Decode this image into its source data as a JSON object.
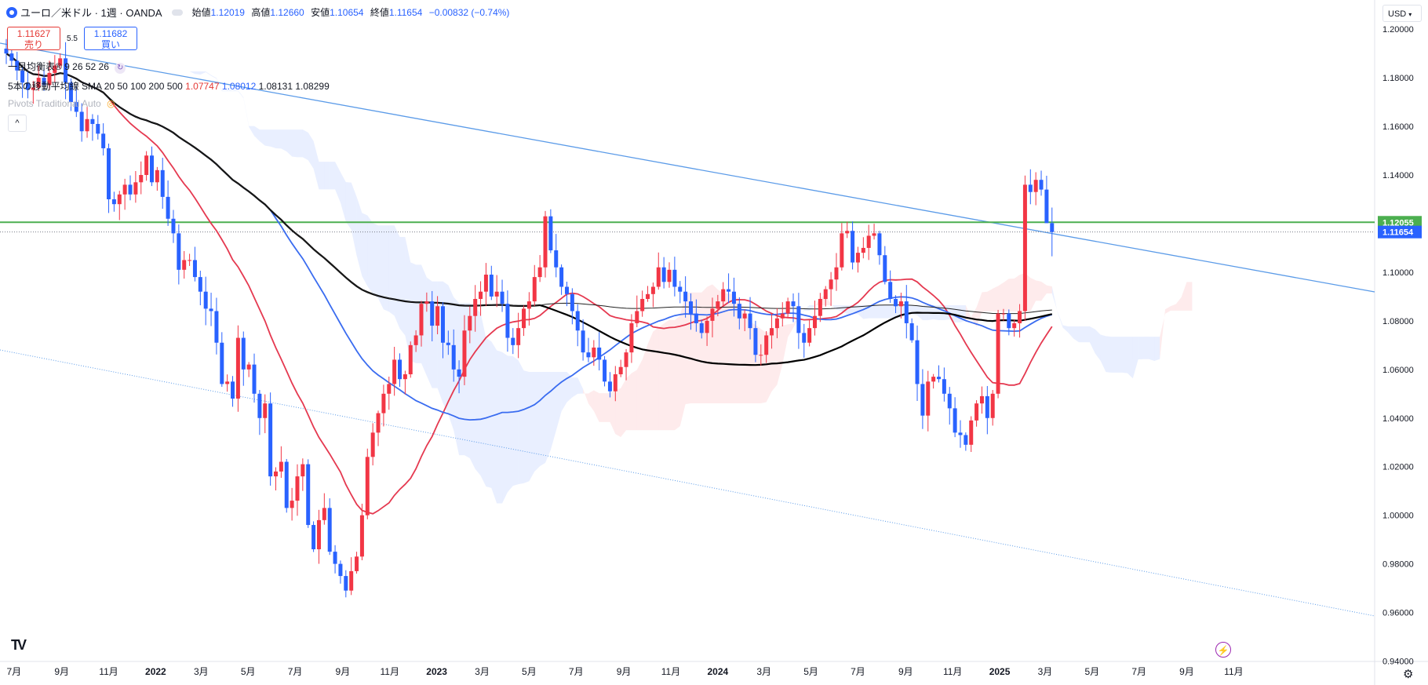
{
  "header": {
    "symbol": "ユーロ／米ドル · 1週 · OANDA",
    "ohlc": [
      {
        "label": "始値",
        "value": "1.12019"
      },
      {
        "label": "高値",
        "value": "1.12660"
      },
      {
        "label": "安値",
        "value": "1.10654"
      },
      {
        "label": "終値",
        "value": "1.11654"
      }
    ],
    "change": "−0.00832 (−0.74%)"
  },
  "trade": {
    "sell_price": "1.11627",
    "sell_label": "売り",
    "spread": "5.5",
    "buy_price": "1.11682",
    "buy_label": "買い"
  },
  "indicators": {
    "ichimoku": "一目均衡表® 9 26 52 26",
    "sma_label": "5本の移動平均線",
    "sma_params": "SMA 20 50 100 200 500",
    "sma_values": [
      "1.07747",
      "1.08012",
      "1.08131",
      "1.08299"
    ],
    "pivots": "Pivots Traditional Auto",
    "collapse": "^"
  },
  "currency_button": "USD",
  "price_tags": {
    "level": "1.12055",
    "last": "1.11654"
  },
  "icons": [
    "symbol-icon",
    "eye-toggle-icon",
    "sync-icon",
    "tradingview-logo-icon",
    "lightning-icon",
    "settings-gear-icon"
  ],
  "colors": {
    "bull": "#f23645",
    "bear": "#2962ff",
    "sma20": "#e53950",
    "sma50": "#3a6cf0",
    "sma100": "#000000",
    "sma200": "#222222",
    "support": "#4caf50",
    "trendline": "#5b9be8"
  },
  "chart_data": {
    "type": "candlestick",
    "timeframe": "1W",
    "y_ticks": [
      "1.20000",
      "1.18000",
      "1.16000",
      "1.14000",
      "1.12000",
      "1.10000",
      "1.08000",
      "1.06000",
      "1.04000",
      "1.02000",
      "1.00000",
      "0.98000",
      "0.96000",
      "0.94000"
    ],
    "x_labels": [
      {
        "label": "7月",
        "x": "2021-07"
      },
      {
        "label": "9月",
        "x": "2021-09"
      },
      {
        "label": "11月",
        "x": "2021-11"
      },
      {
        "label": "2022",
        "x": "2022-01"
      },
      {
        "label": "3月",
        "x": "2022-03"
      },
      {
        "label": "5月",
        "x": "2022-05"
      },
      {
        "label": "7月",
        "x": "2022-07"
      },
      {
        "label": "9月",
        "x": "2022-09"
      },
      {
        "label": "11月",
        "x": "2022-11"
      },
      {
        "label": "2023",
        "x": "2023-01"
      },
      {
        "label": "3月",
        "x": "2023-03"
      },
      {
        "label": "5月",
        "x": "2023-05"
      },
      {
        "label": "7月",
        "x": "2023-07"
      },
      {
        "label": "9月",
        "x": "2023-09"
      },
      {
        "label": "11月",
        "x": "2023-11"
      },
      {
        "label": "2024",
        "x": "2024-01"
      },
      {
        "label": "3月",
        "x": "2024-03"
      },
      {
        "label": "5月",
        "x": "2024-05"
      },
      {
        "label": "7月",
        "x": "2024-07"
      },
      {
        "label": "9月",
        "x": "2024-09"
      },
      {
        "label": "11月",
        "x": "2024-11"
      },
      {
        "label": "2025",
        "x": "2025-01"
      },
      {
        "label": "3月",
        "x": "2025-03"
      },
      {
        "label": "5月",
        "x": "2025-05"
      },
      {
        "label": "7月",
        "x": "2025-07"
      },
      {
        "label": "9月",
        "x": "2025-09"
      },
      {
        "label": "11月",
        "x": "2025-11"
      }
    ],
    "ylim": [
      0.935,
      1.212
    ],
    "closes": [
      1.19,
      1.187,
      1.183,
      1.178,
      1.175,
      1.176,
      1.18,
      1.177,
      1.182,
      1.185,
      1.188,
      1.178,
      1.17,
      1.166,
      1.158,
      1.163,
      1.161,
      1.157,
      1.151,
      1.13,
      1.128,
      1.132,
      1.136,
      1.132,
      1.137,
      1.14,
      1.148,
      1.137,
      1.142,
      1.131,
      1.122,
      1.116,
      1.101,
      1.105,
      1.105,
      1.098,
      1.092,
      1.085,
      1.084,
      1.071,
      1.054,
      1.055,
      1.048,
      1.073,
      1.06,
      1.062,
      1.05,
      1.04,
      1.046,
      1.016,
      1.018,
      1.022,
      1.003,
      1.006,
      1.016,
      1.021,
      0.996,
      0.986,
      0.998,
      1.003,
      0.985,
      0.98,
      0.975,
      0.969,
      0.977,
      0.983,
      1.0,
      1.024,
      1.034,
      1.042,
      1.05,
      1.054,
      1.064,
      1.056,
      1.058,
      1.07,
      1.074,
      1.087,
      1.088,
      1.078,
      1.086,
      1.071,
      1.07,
      1.06,
      1.057,
      1.076,
      1.082,
      1.089,
      1.092,
      1.099,
      1.09,
      1.092,
      1.087,
      1.073,
      1.07,
      1.077,
      1.085,
      1.088,
      1.098,
      1.102,
      1.123,
      1.109,
      1.102,
      1.094,
      1.091,
      1.084,
      1.076,
      1.067,
      1.065,
      1.069,
      1.064,
      1.055,
      1.051,
      1.058,
      1.061,
      1.067,
      1.079,
      1.084,
      1.089,
      1.091,
      1.094,
      1.102,
      1.096,
      1.101,
      1.094,
      1.092,
      1.088,
      1.083,
      1.079,
      1.075,
      1.08,
      1.085,
      1.088,
      1.093,
      1.092,
      1.087,
      1.081,
      1.083,
      1.077,
      1.066,
      1.066,
      1.074,
      1.077,
      1.081,
      1.083,
      1.088,
      1.086,
      1.075,
      1.071,
      1.077,
      1.082,
      1.089,
      1.093,
      1.097,
      1.102,
      1.116,
      1.117,
      1.104,
      1.108,
      1.11,
      1.115,
      1.116,
      1.107,
      1.096,
      1.089,
      1.086,
      1.088,
      1.079,
      1.072,
      1.054,
      1.041,
      1.055,
      1.057,
      1.056,
      1.05,
      1.044,
      1.034,
      1.033,
      1.029,
      1.039,
      1.046,
      1.049,
      1.04,
      1.05,
      1.083,
      1.083,
      1.077,
      1.079,
      1.084,
      1.136,
      1.133,
      1.138,
      1.134,
      1.125,
      1.117
    ],
    "series": [
      {
        "name": "SMA 20",
        "color": "#e53950",
        "last": "1.07747"
      },
      {
        "name": "SMA 50",
        "color": "#3a6cf0",
        "last": "1.08012"
      },
      {
        "name": "SMA 100",
        "color": "#000000",
        "last": "1.08131"
      },
      {
        "name": "SMA 200",
        "color": "#222222",
        "last": "1.08299"
      }
    ],
    "horizontal_line": 1.12055,
    "last_price": 1.11654
  }
}
